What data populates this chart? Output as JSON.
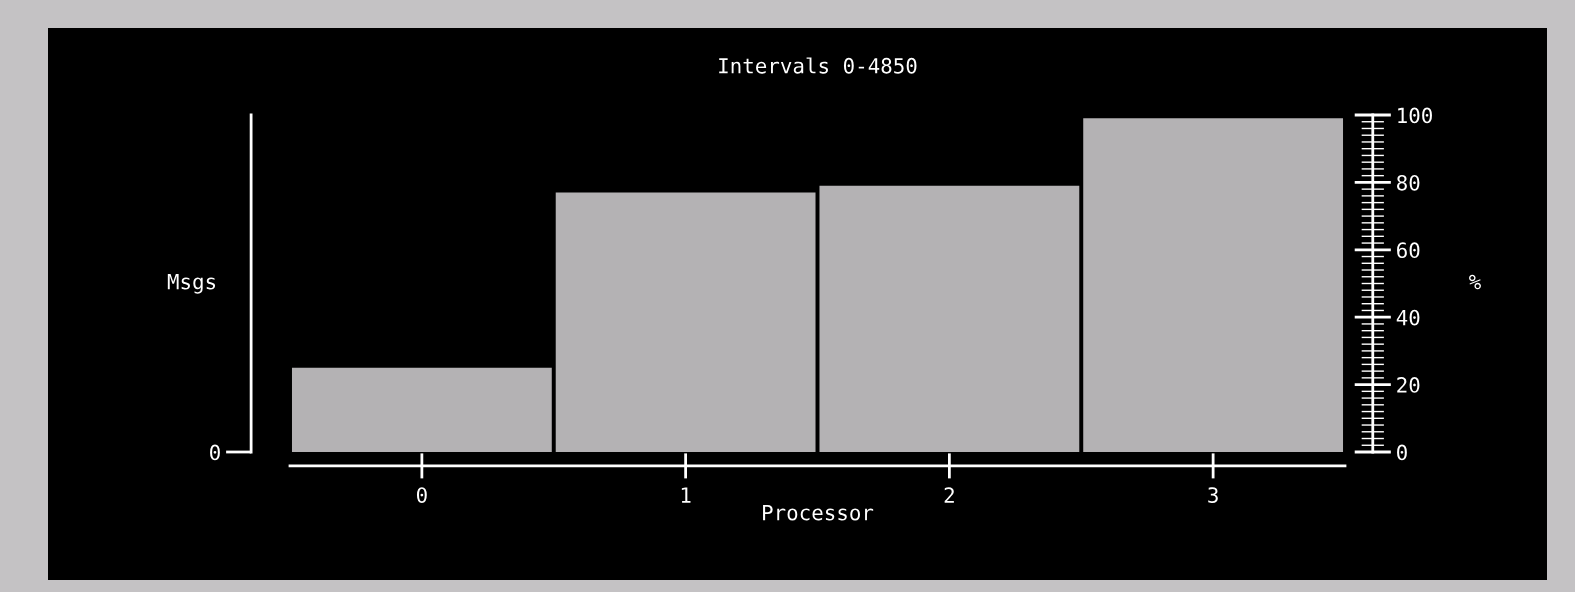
{
  "chart_data": {
    "type": "bar",
    "title": "Intervals 0-4850",
    "xlabel": "Processor",
    "ylabel": "Msgs",
    "y2label": "%",
    "categories": [
      "0",
      "1",
      "2",
      "3"
    ],
    "series": [
      {
        "color": "#b4b2b4",
        "axis": "y2",
        "values": [
          25,
          77,
          79,
          99
        ]
      }
    ],
    "annotations": [
      "0"
    ],
    "y2lim": [
      0,
      100
    ],
    "y2ticks": [
      0,
      20,
      40,
      60,
      80,
      100
    ]
  }
}
